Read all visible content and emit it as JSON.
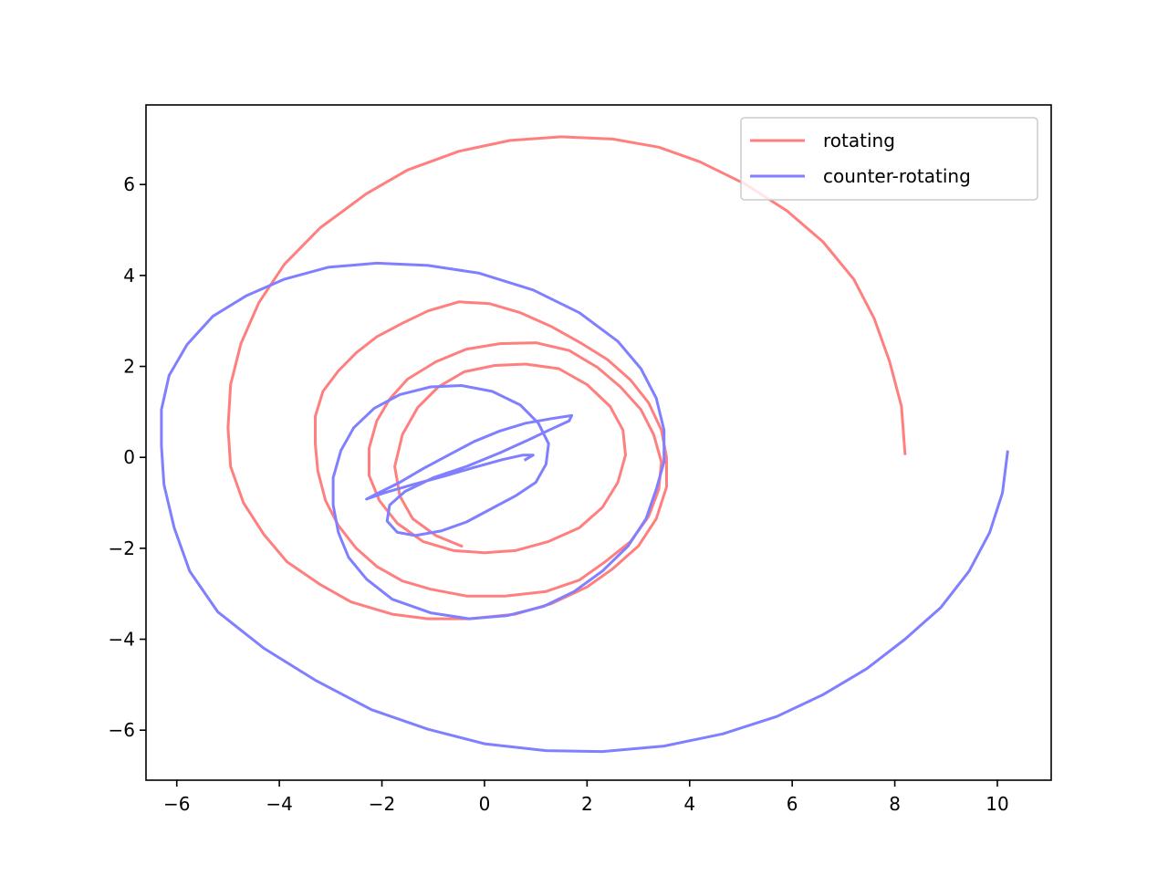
{
  "chart_data": {
    "type": "line",
    "title": "",
    "xlabel": "",
    "ylabel": "",
    "xlim": [
      -6.6,
      11.05
    ],
    "ylim": [
      -7.1,
      7.75
    ],
    "xticks": [
      -6,
      -4,
      -2,
      0,
      2,
      4,
      6,
      8,
      10
    ],
    "yticks": [
      -6,
      -4,
      -2,
      0,
      2,
      4,
      6
    ],
    "xtick_labels": [
      "−6",
      "−4",
      "−2",
      "0",
      "2",
      "4",
      "6",
      "8",
      "10"
    ],
    "ytick_labels": [
      "−6",
      "−4",
      "−2",
      "0",
      "2",
      "4",
      "6"
    ],
    "grid": false,
    "legend": {
      "placement": "top-right"
    },
    "series": [
      {
        "name": "rotating",
        "color": "#ff7f7f",
        "points": [
          [
            8.2,
            0.08
          ],
          [
            8.13,
            1.12
          ],
          [
            7.9,
            2.1
          ],
          [
            7.6,
            3.05
          ],
          [
            7.2,
            3.92
          ],
          [
            6.6,
            4.74
          ],
          [
            5.9,
            5.42
          ],
          [
            5.1,
            6.0
          ],
          [
            4.2,
            6.5
          ],
          [
            3.4,
            6.82
          ],
          [
            2.5,
            7.0
          ],
          [
            1.5,
            7.05
          ],
          [
            0.5,
            6.97
          ],
          [
            -0.5,
            6.73
          ],
          [
            -1.5,
            6.32
          ],
          [
            -2.3,
            5.8
          ],
          [
            -3.2,
            5.05
          ],
          [
            -3.9,
            4.25
          ],
          [
            -4.4,
            3.4
          ],
          [
            -4.75,
            2.5
          ],
          [
            -4.95,
            1.6
          ],
          [
            -5.0,
            0.65
          ],
          [
            -4.95,
            -0.2
          ],
          [
            -4.7,
            -1.0
          ],
          [
            -4.3,
            -1.7
          ],
          [
            -3.85,
            -2.3
          ],
          [
            -3.2,
            -2.8
          ],
          [
            -2.6,
            -3.18
          ],
          [
            -1.8,
            -3.45
          ],
          [
            -1.1,
            -3.55
          ],
          [
            -0.3,
            -3.55
          ],
          [
            0.6,
            -3.45
          ],
          [
            1.3,
            -3.22
          ],
          [
            2.0,
            -2.85
          ],
          [
            2.5,
            -2.45
          ],
          [
            3.0,
            -1.95
          ],
          [
            3.35,
            -1.35
          ],
          [
            3.55,
            -0.65
          ],
          [
            3.55,
            0.0
          ],
          [
            3.45,
            0.6
          ],
          [
            3.2,
            1.2
          ],
          [
            2.85,
            1.7
          ],
          [
            2.4,
            2.15
          ],
          [
            1.9,
            2.5
          ],
          [
            1.3,
            2.88
          ],
          [
            0.7,
            3.18
          ],
          [
            0.1,
            3.38
          ],
          [
            -0.5,
            3.42
          ],
          [
            -1.1,
            3.22
          ],
          [
            -1.6,
            2.95
          ],
          [
            -2.1,
            2.65
          ],
          [
            -2.5,
            2.3
          ],
          [
            -2.85,
            1.9
          ],
          [
            -3.15,
            1.45
          ],
          [
            -3.3,
            0.9
          ],
          [
            -3.3,
            0.3
          ],
          [
            -3.25,
            -0.3
          ],
          [
            -3.1,
            -0.95
          ],
          [
            -2.85,
            -1.5
          ],
          [
            -2.5,
            -2.0
          ],
          [
            -2.1,
            -2.4
          ],
          [
            -1.6,
            -2.72
          ],
          [
            -1.05,
            -2.9
          ],
          [
            -0.35,
            -3.05
          ],
          [
            0.4,
            -3.05
          ],
          [
            1.2,
            -2.95
          ],
          [
            1.85,
            -2.7
          ],
          [
            2.35,
            -2.3
          ],
          [
            2.85,
            -1.85
          ],
          [
            3.2,
            -1.3
          ],
          [
            3.4,
            -0.7
          ],
          [
            3.45,
            -0.1
          ],
          [
            3.3,
            0.5
          ],
          [
            3.05,
            1.05
          ],
          [
            2.65,
            1.55
          ],
          [
            2.2,
            1.98
          ],
          [
            1.65,
            2.35
          ],
          [
            1.0,
            2.52
          ],
          [
            0.3,
            2.5
          ],
          [
            -0.35,
            2.38
          ],
          [
            -0.95,
            2.1
          ],
          [
            -1.5,
            1.72
          ],
          [
            -1.85,
            1.28
          ],
          [
            -2.1,
            0.8
          ],
          [
            -2.25,
            0.2
          ],
          [
            -2.25,
            -0.4
          ],
          [
            -2.05,
            -0.95
          ],
          [
            -1.7,
            -1.45
          ],
          [
            -1.2,
            -1.85
          ],
          [
            -0.6,
            -2.05
          ],
          [
            0.0,
            -2.1
          ],
          [
            0.6,
            -2.05
          ],
          [
            1.25,
            -1.85
          ],
          [
            1.85,
            -1.55
          ],
          [
            2.3,
            -1.1
          ],
          [
            2.6,
            -0.55
          ],
          [
            2.75,
            0.05
          ],
          [
            2.7,
            0.6
          ],
          [
            2.45,
            1.12
          ],
          [
            2.0,
            1.6
          ],
          [
            1.45,
            1.95
          ],
          [
            0.8,
            2.05
          ],
          [
            0.2,
            2.02
          ],
          [
            -0.4,
            1.88
          ],
          [
            -0.9,
            1.55
          ],
          [
            -1.3,
            1.1
          ],
          [
            -1.6,
            0.5
          ],
          [
            -1.75,
            -0.2
          ],
          [
            -1.65,
            -0.85
          ],
          [
            -1.4,
            -1.35
          ],
          [
            -0.95,
            -1.72
          ],
          [
            -0.45,
            -1.95
          ]
        ]
      },
      {
        "name": "counter-rotating",
        "color": "#7f7fff",
        "points": [
          [
            10.2,
            0.12
          ],
          [
            10.1,
            -0.78
          ],
          [
            9.85,
            -1.65
          ],
          [
            9.45,
            -2.5
          ],
          [
            8.9,
            -3.3
          ],
          [
            8.2,
            -4.0
          ],
          [
            7.45,
            -4.65
          ],
          [
            6.6,
            -5.22
          ],
          [
            5.7,
            -5.7
          ],
          [
            4.65,
            -6.08
          ],
          [
            3.5,
            -6.35
          ],
          [
            2.3,
            -6.47
          ],
          [
            1.2,
            -6.45
          ],
          [
            0.0,
            -6.3
          ],
          [
            -1.1,
            -5.98
          ],
          [
            -2.2,
            -5.55
          ],
          [
            -3.3,
            -4.9
          ],
          [
            -4.3,
            -4.2
          ],
          [
            -5.2,
            -3.4
          ],
          [
            -5.75,
            -2.5
          ],
          [
            -6.05,
            -1.55
          ],
          [
            -6.25,
            -0.6
          ],
          [
            -6.3,
            0.25
          ],
          [
            -6.3,
            1.05
          ],
          [
            -6.15,
            1.8
          ],
          [
            -5.8,
            2.48
          ],
          [
            -5.3,
            3.1
          ],
          [
            -4.65,
            3.55
          ],
          [
            -3.9,
            3.92
          ],
          [
            -3.05,
            4.18
          ],
          [
            -2.1,
            4.27
          ],
          [
            -1.1,
            4.22
          ],
          [
            -0.1,
            4.05
          ],
          [
            0.95,
            3.68
          ],
          [
            1.85,
            3.18
          ],
          [
            2.6,
            2.55
          ],
          [
            3.05,
            1.95
          ],
          [
            3.35,
            1.3
          ],
          [
            3.5,
            0.6
          ],
          [
            3.5,
            -0.1
          ],
          [
            3.35,
            -0.7
          ],
          [
            3.15,
            -1.35
          ],
          [
            2.8,
            -1.95
          ],
          [
            2.3,
            -2.5
          ],
          [
            1.75,
            -2.95
          ],
          [
            1.15,
            -3.28
          ],
          [
            0.45,
            -3.48
          ],
          [
            -0.3,
            -3.55
          ],
          [
            -1.05,
            -3.42
          ],
          [
            -1.8,
            -3.12
          ],
          [
            -2.3,
            -2.68
          ],
          [
            -2.65,
            -2.2
          ],
          [
            -2.85,
            -1.65
          ],
          [
            -2.95,
            -1.05
          ],
          [
            -2.95,
            -0.45
          ],
          [
            -2.8,
            0.15
          ],
          [
            -2.55,
            0.65
          ],
          [
            -2.15,
            1.08
          ],
          [
            -1.65,
            1.38
          ],
          [
            -1.05,
            1.55
          ],
          [
            -0.45,
            1.58
          ],
          [
            0.15,
            1.45
          ],
          [
            0.7,
            1.15
          ],
          [
            1.05,
            0.75
          ],
          [
            1.25,
            0.3
          ],
          [
            1.2,
            -0.15
          ],
          [
            1.0,
            -0.55
          ],
          [
            0.6,
            -0.85
          ],
          [
            0.15,
            -1.12
          ],
          [
            -0.35,
            -1.42
          ],
          [
            -0.85,
            -1.62
          ],
          [
            -1.35,
            -1.72
          ],
          [
            -1.7,
            -1.65
          ],
          [
            -1.9,
            -1.4
          ],
          [
            -1.85,
            -1.05
          ],
          [
            -1.55,
            -0.75
          ],
          [
            -1.0,
            -0.45
          ],
          [
            -0.35,
            -0.2
          ],
          [
            0.3,
            0.1
          ],
          [
            0.85,
            0.38
          ],
          [
            1.3,
            0.62
          ],
          [
            1.65,
            0.8
          ],
          [
            1.7,
            0.92
          ],
          [
            1.3,
            0.85
          ],
          [
            0.8,
            0.75
          ],
          [
            0.3,
            0.58
          ],
          [
            -0.2,
            0.35
          ],
          [
            -0.7,
            0.05
          ],
          [
            -1.2,
            -0.25
          ],
          [
            -1.65,
            -0.55
          ],
          [
            -2.1,
            -0.8
          ],
          [
            -2.3,
            -0.92
          ],
          [
            -1.95,
            -0.78
          ],
          [
            -1.4,
            -0.6
          ],
          [
            -0.8,
            -0.42
          ],
          [
            -0.2,
            -0.22
          ],
          [
            0.35,
            -0.05
          ],
          [
            0.75,
            0.05
          ],
          [
            0.95,
            0.05
          ],
          [
            0.8,
            -0.05
          ]
        ]
      }
    ]
  }
}
